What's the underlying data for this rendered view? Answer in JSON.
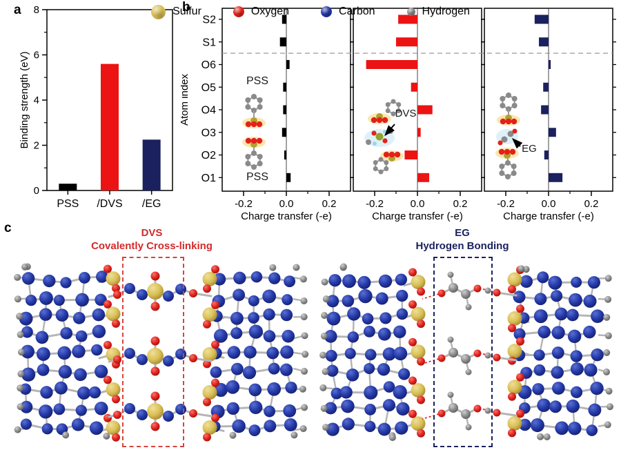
{
  "panel_letters": {
    "a": "a",
    "b": "b",
    "c": "c"
  },
  "accent_colors": {
    "bar_red": "#ec1313",
    "bar_navy": "#1a215e",
    "bar_black": "#000000",
    "title_red": "#d22b2b",
    "title_navy": "#1a215e",
    "dashed_box_red": "#d8433c",
    "dashed_box_navy": "#1a215e",
    "divider_gray": "#999999"
  },
  "atom_colors": {
    "sulfur": "#d9bf55",
    "oxygen": "#e3211c",
    "carbon": "#2338a8",
    "hydrogen": "#8a8a8a",
    "bond": "#b5b5b5",
    "hbond_dashed": "#e02020"
  },
  "chart_data": [
    {
      "id": "binding-strength",
      "type": "bar",
      "title": "",
      "categories": [
        "PSS",
        "/DVS",
        "/EG"
      ],
      "values": [
        0.3,
        5.6,
        2.25
      ],
      "bar_colors": [
        "#000000",
        "#ec1313",
        "#1a215e"
      ],
      "xlabel": "",
      "ylabel": "Binding strength (eV)",
      "ylim": [
        0,
        8
      ],
      "yticks_major": [
        0,
        2,
        4,
        6,
        8
      ],
      "yticks_minor": [
        1,
        3,
        5,
        7
      ],
      "grid": false,
      "legend_position": "none"
    },
    {
      "id": "charge-transfer",
      "type": "bar-horizontal",
      "title": "",
      "xlabel": "Charge transfer (-e)",
      "ylabel": "Atom index",
      "categories_top_to_bottom": [
        "S2",
        "S1",
        "O6",
        "O5",
        "O4",
        "O3",
        "O2",
        "O1"
      ],
      "xlim": [
        -0.3,
        0.3
      ],
      "xticks_major": [
        -0.2,
        0.0,
        0.2
      ],
      "xticks_minor": [
        -0.1,
        0.1
      ],
      "divider_between": [
        "S1",
        "O6"
      ],
      "grid": false,
      "series": [
        {
          "name": "PSS",
          "color": "#000000",
          "values_top_to_bottom": [
            -0.02,
            -0.03,
            0.015,
            -0.015,
            -0.015,
            -0.02,
            -0.01,
            0.02
          ]
        },
        {
          "name": "DVS",
          "color": "#ec1313",
          "values_top_to_bottom": [
            -0.09,
            -0.1,
            -0.24,
            -0.03,
            0.07,
            0.015,
            -0.06,
            0.055
          ]
        },
        {
          "name": "EG",
          "color": "#1a215e",
          "values_top_to_bottom": [
            -0.065,
            -0.045,
            0.01,
            -0.025,
            -0.035,
            0.035,
            -0.02,
            0.065
          ]
        }
      ],
      "insets": {
        "pss_top_label": "PSS",
        "pss_bottom_label": "PSS",
        "dvs_label": "DVS",
        "eg_label": "EG"
      }
    }
  ],
  "panel_c": {
    "left_title_line1": "DVS",
    "left_title_line2": "Covalently Cross-linking",
    "right_title_line1": "EG",
    "right_title_line2": "Hydrogen Bonding"
  },
  "legend": {
    "items": [
      {
        "label": "Sulfur",
        "color": "#d9bf55",
        "size": 21
      },
      {
        "label": "Oxygen",
        "color": "#e3211c",
        "size": 16
      },
      {
        "label": "Carbon",
        "color": "#2338a8",
        "size": 16
      },
      {
        "label": "Hydrogen",
        "color": "#8a8a8a",
        "size": 12
      }
    ]
  }
}
